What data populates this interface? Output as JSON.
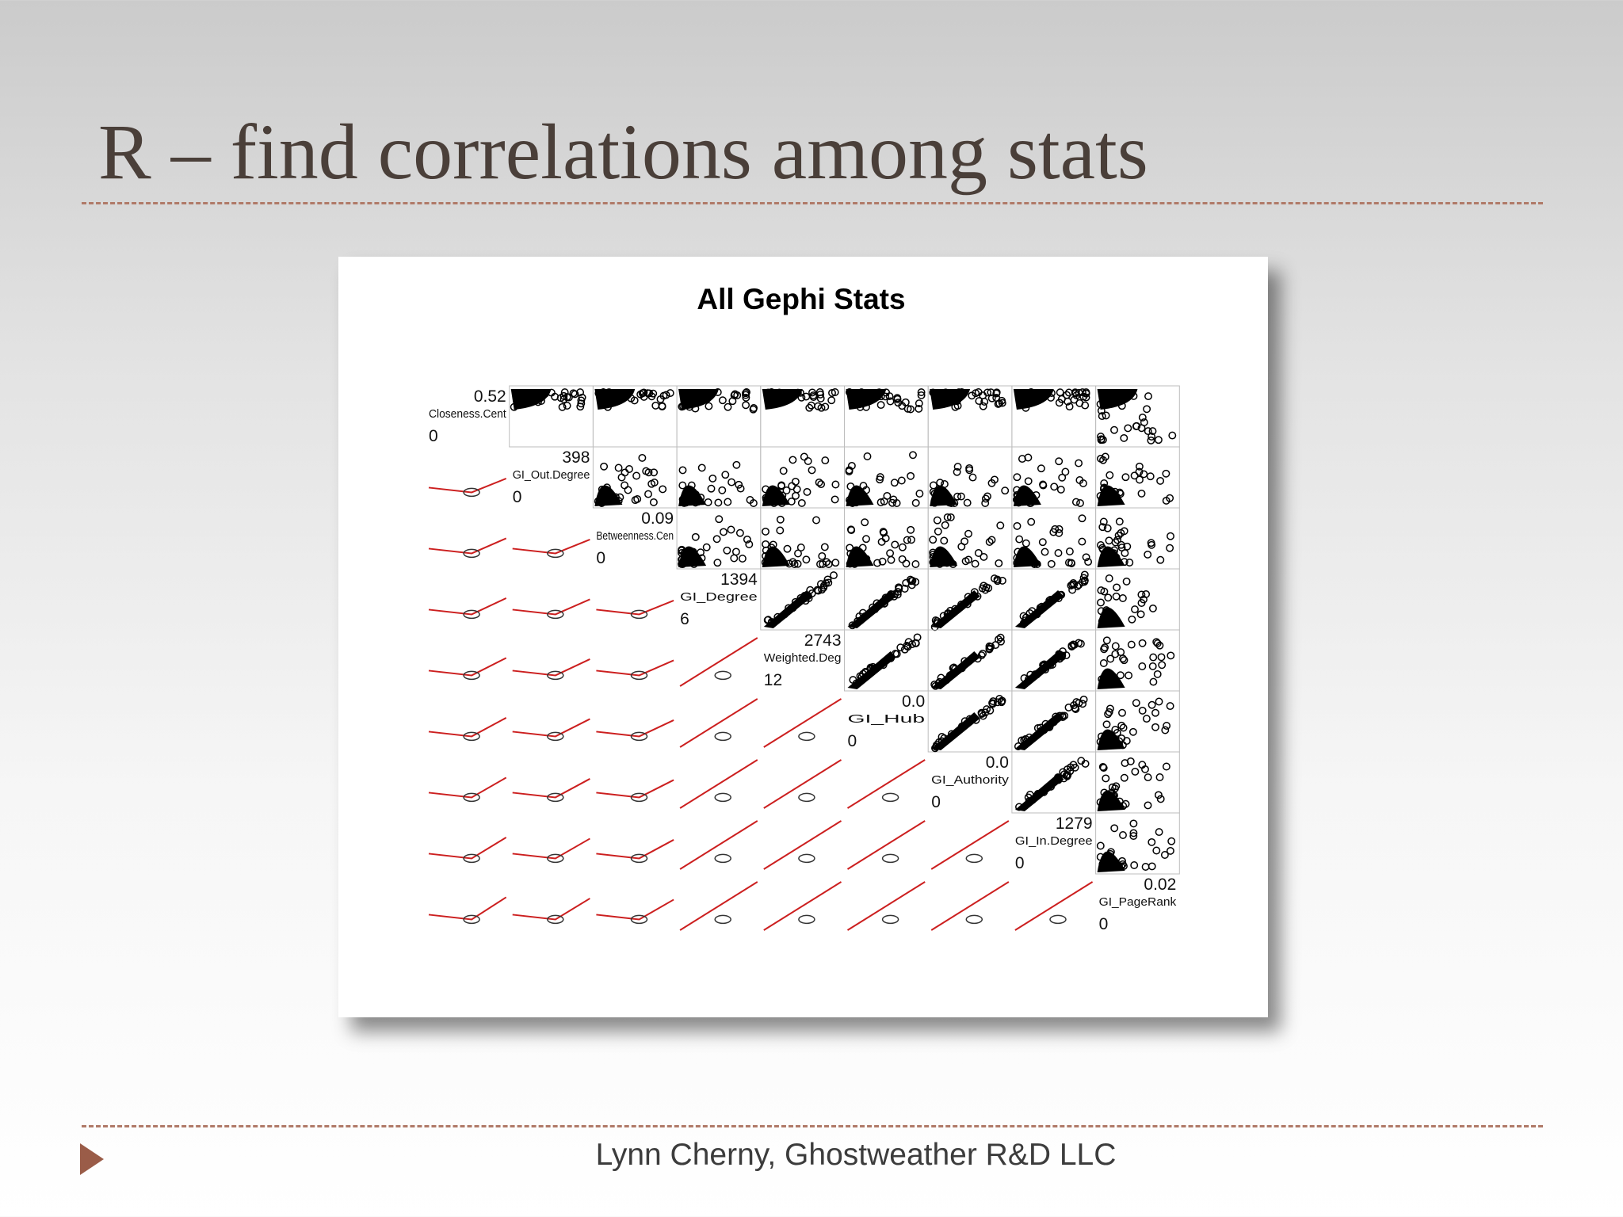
{
  "slide": {
    "title": "R – find correlations among stats",
    "footer": "Lynn Cherny, Ghostweather R&D LLC",
    "accent_color": "#9a5c48",
    "rule_color": "#b07a68",
    "footer_icon": "triangle-bullet-icon"
  },
  "chart_data": {
    "type": "scatter",
    "title": "All Gephi Stats",
    "matrix": "pairs",
    "variables": [
      {
        "label": "Closeness.Cent",
        "max": "0.52",
        "min": "0"
      },
      {
        "label": "GI_Out.Degree",
        "max": "398",
        "min": "0"
      },
      {
        "label": "Betweenness.Cen",
        "max": "0.09",
        "min": "0"
      },
      {
        "label": "GI_Degree",
        "max": "1394",
        "min": "6"
      },
      {
        "label": "Weighted.Deg",
        "max": "2743",
        "min": "12"
      },
      {
        "label": "GI_Hub",
        "max": "0.0",
        "min": "0"
      },
      {
        "label": "GI_Authority",
        "max": "0.0",
        "min": "0"
      },
      {
        "label": "GI_In.Degree",
        "max": "1279",
        "min": "0"
      },
      {
        "label": "GI_PageRank",
        "max": "0.02",
        "min": "0"
      }
    ],
    "upper_panels": "scatter",
    "lower_panels": "smoothed fit line",
    "point_color": "#000000",
    "line_color": "#cc1f1f"
  }
}
